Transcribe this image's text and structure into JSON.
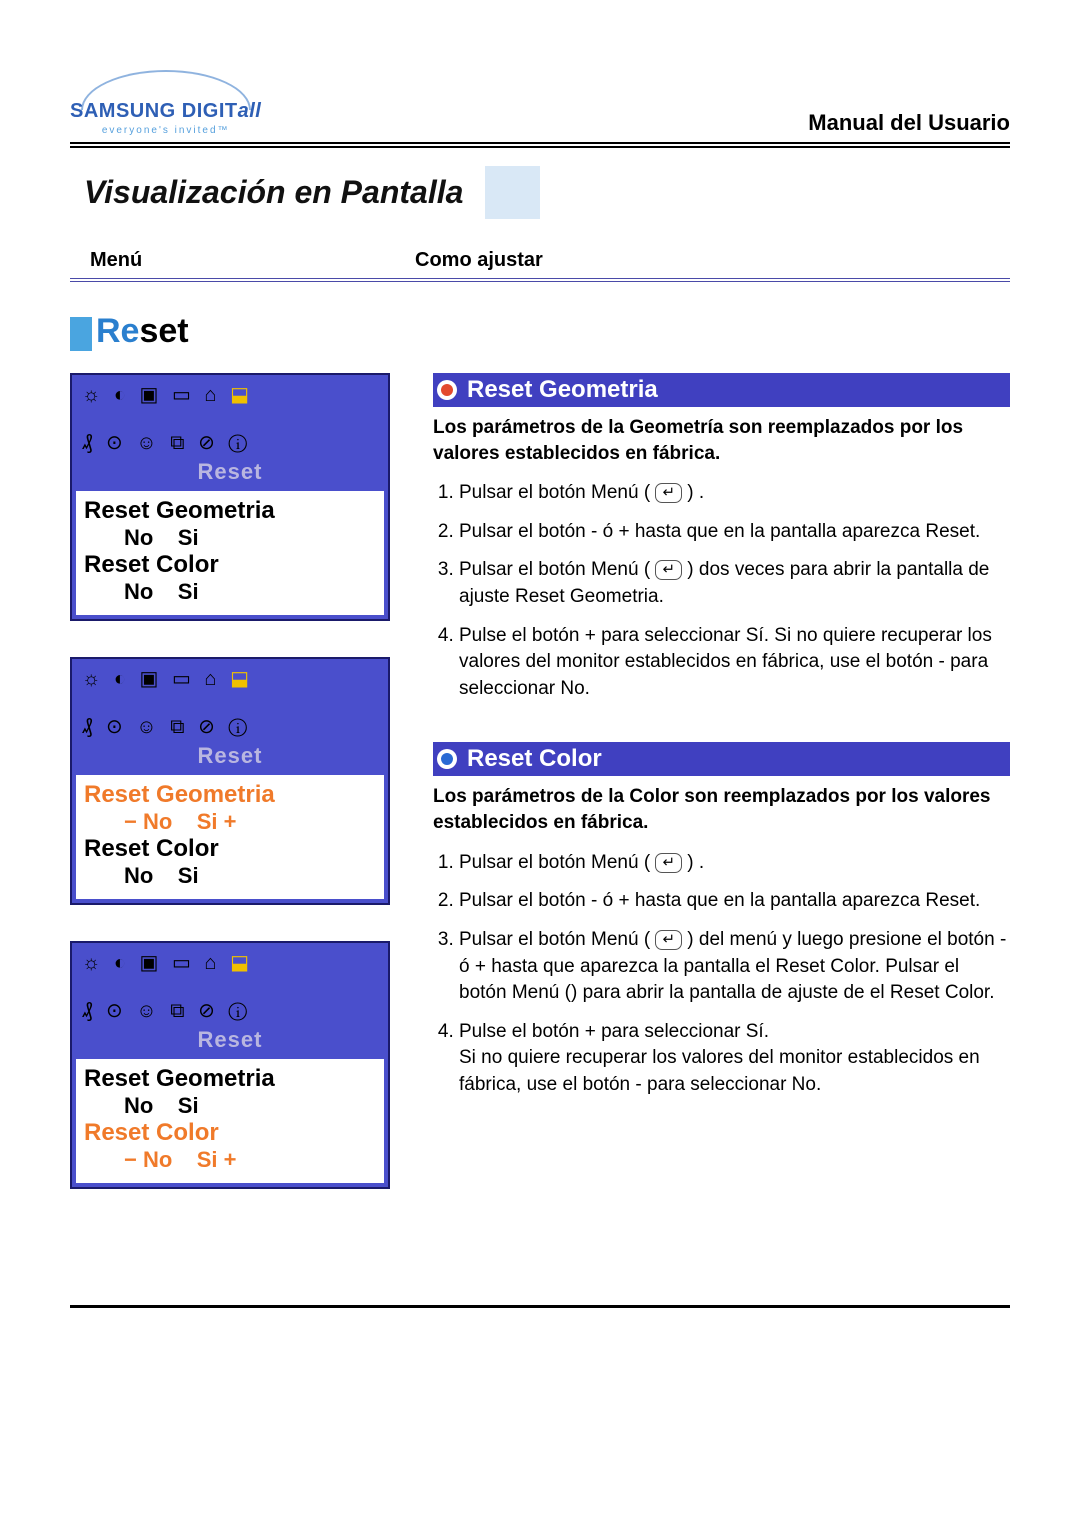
{
  "header": {
    "logo_main_1": "SAMSUNG DIGIT",
    "logo_main_2": "all",
    "logo_tag": "everyone's invited™",
    "doctype": "Manual del Usuario"
  },
  "page_title": "Visualización en Pantalla",
  "columns": {
    "menu": "Menú",
    "howto": "Como ajustar"
  },
  "section": {
    "prefix": "Re",
    "suffix": "set"
  },
  "osd_common": {
    "reset_label": "Reset",
    "geom_label": "Reset Geometria",
    "color_label": "Reset Color",
    "icons_row1": "☼ ◐ ▣ ▭ ⌂ ⬓",
    "icons_row2": "₰ ⊙ ☺ ⧉ ⊘ ⓘ",
    "highlight_icon": "⬓"
  },
  "osd_panels": [
    {
      "geom_hl": false,
      "color_hl": false,
      "geom_opts": "No    Si",
      "color_opts": "No    Si"
    },
    {
      "geom_hl": true,
      "color_hl": false,
      "geom_opts": "− No    Si +",
      "color_opts": "No    Si"
    },
    {
      "geom_hl": false,
      "color_hl": true,
      "geom_opts": "No    Si",
      "color_opts": "− No    Si +"
    }
  ],
  "sections": [
    {
      "title": "Reset Geometria",
      "bullet": "red",
      "intro": "Los parámetros de la Geometría son reemplazados por los valores establecidos en fábrica.",
      "steps": [
        "Pulsar el botón Menú ( [↵] ) .",
        "Pulsar el botón - ó + hasta que en la pantalla aparezca Reset.",
        "Pulsar el botón Menú ( [↵] ) dos veces para abrir la pantalla de ajuste Reset Geometria.",
        "Pulse el botón + para seleccionar Sí. Si no quiere recuperar los valores del monitor establecidos en fábrica, use el botón - para seleccionar No."
      ]
    },
    {
      "title": "Reset Color",
      "bullet": "blue",
      "intro": "Los parámetros de la Color son reemplazados por los valores establecidos en fábrica.",
      "steps": [
        "Pulsar el botón Menú ( [↵] ) .",
        "Pulsar el botón - ó + hasta que en la pantalla aparezca Reset.",
        "Pulsar el botón Menú ( [↵] ) del menú y luego presione el botón - ó + hasta que aparezca la pantalla el Reset Color. Pulsar el botón Menú () para abrir la pantalla de ajuste de el Reset Color.",
        "Pulse el botón + para seleccionar Sí.\nSi no quiere recuperar los valores del monitor establecidos en fábrica, use el botón - para seleccionar No."
      ]
    }
  ],
  "colors": {
    "title_bg": "#d9e8f6",
    "osd_bg": "#4a4fcc",
    "subhead_bg": "#4040c0",
    "bullet_red": "#e34a2e",
    "bullet_blue": "#2a6ad4",
    "osd_highlight": "#f07a2a",
    "icon_highlight": "#f0c000"
  }
}
